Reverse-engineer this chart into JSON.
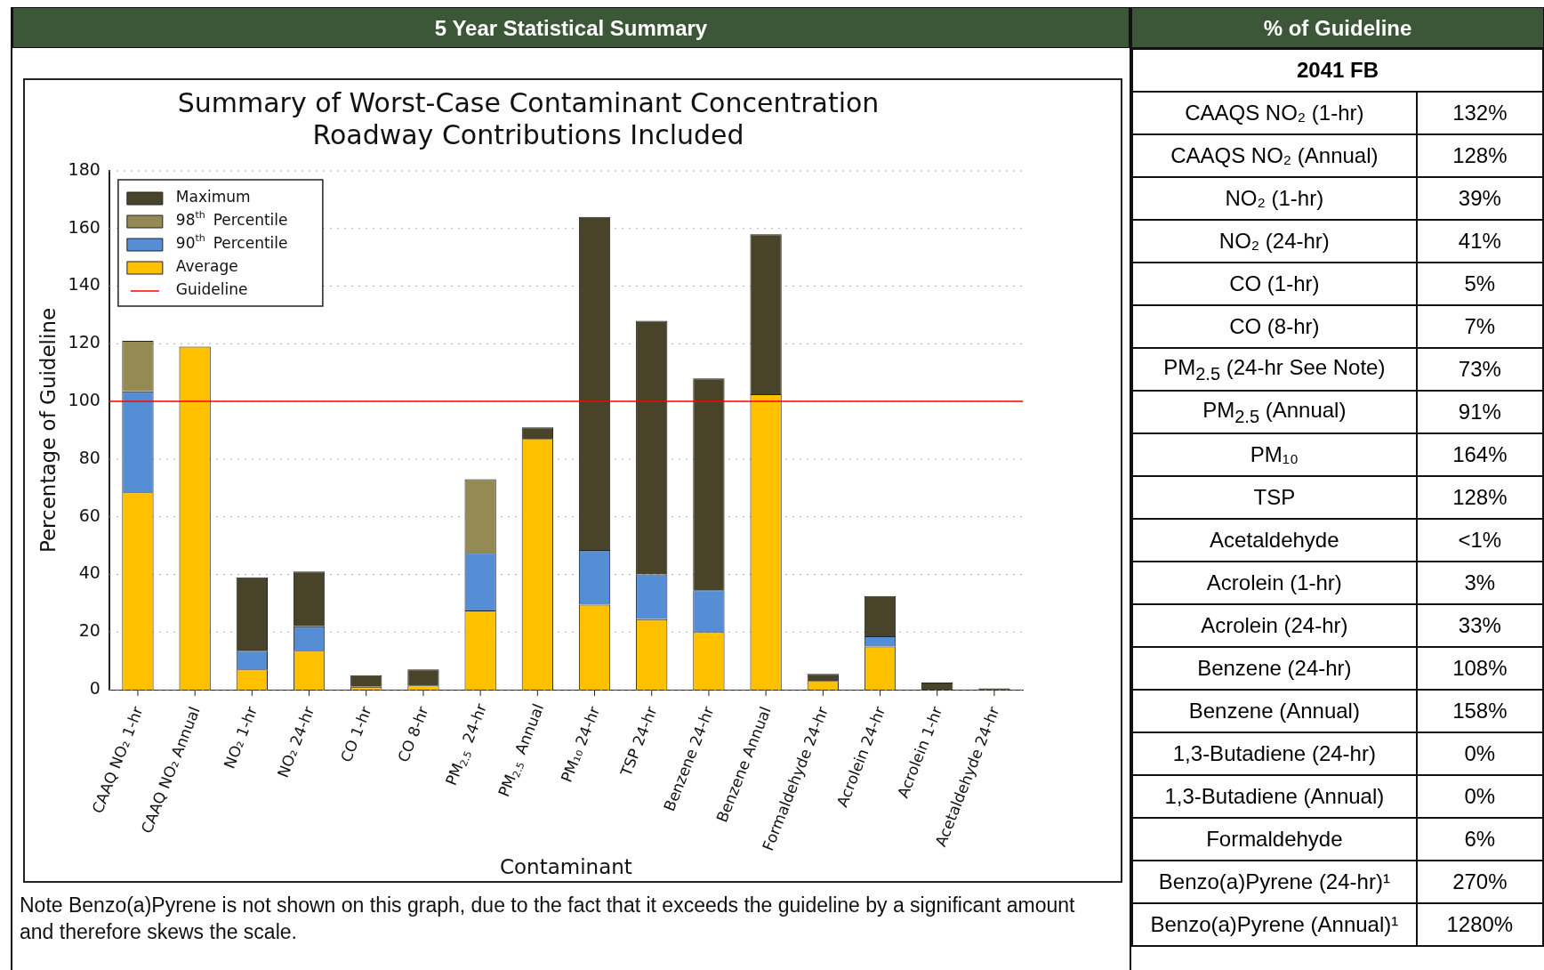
{
  "chart_data": [
    {
      "type": "bar",
      "title": "Summary of Worst-Case Contaminant Concentration\nRoadway Contributions Included",
      "xlabel": "Contaminant",
      "ylabel": "Percentage of Guideline",
      "annotations": [
        "5 Year Statistical Summary",
        "Note Benzo(a)Pyrene is not shown on this graph, due to the fact that it exceeds the guideline by a significant amount and therefore skews the scale."
      ],
      "categories": [
        "CAAQ NO₂ 1-hr",
        "CAAQ NO₂ Annual",
        "NO₂ 1-hr",
        "NO₂ 24-hr",
        "CO 1-hr",
        "CO 8-hr",
        "PM$_{2.5}$ 24-hr",
        "PM$_{2.5}$ Annual",
        "PM₁₀ 24-hr",
        "TSP 24-hr",
        "Benzene 24-hr",
        "Benzene Annual",
        "Formaldehyde 24-hr",
        "Acrolein 24-hr",
        "Acrolein 1-hr",
        "Acetaldehyde 24-hr"
      ],
      "stacked": true,
      "series": [
        {
          "name": "Average",
          "color": "#ffc000",
          "values": [
            68.5,
            119,
            7,
            13.5,
            1,
            1.5,
            27.5,
            87,
            29.5,
            24.5,
            20,
            102.5,
            3,
            15,
            null,
            null
          ]
        },
        {
          "name": "90$^{th}$ Percentile",
          "color": "#558ed5",
          "values": [
            35,
            null,
            6.5,
            8.5,
            null,
            null,
            20,
            null,
            19,
            15.5,
            14.5,
            null,
            null,
            3.5,
            null,
            null
          ]
        },
        {
          "name": "98$^{th}$ Percentile",
          "color": "#948a54",
          "values": [
            17.5,
            null,
            null,
            null,
            null,
            null,
            25.5,
            null,
            null,
            null,
            null,
            null,
            null,
            null,
            null,
            null
          ]
        },
        {
          "name": "Maximum",
          "color": "#494429",
          "values": [
            null,
            null,
            25.5,
            19,
            4,
            5.5,
            null,
            4,
            115.5,
            88,
            73.5,
            55.5,
            2.5,
            14,
            2.5,
            0.5
          ]
        }
      ],
      "ref_lines": [
        {
          "axis": "y",
          "value": 100,
          "label": "Guideline",
          "color": "#ff0000"
        }
      ],
      "ylim": [
        0,
        180
      ],
      "yticks": [
        0,
        20,
        40,
        60,
        80,
        100,
        120,
        140,
        160,
        180
      ],
      "grid": "y",
      "legend": "top left"
    },
    {
      "type": "other",
      "title": "% of Guideline",
      "subtitle": "2041 FB",
      "annotations": [
        "CAAQS NO₂ (1-hr)",
        "132%",
        "CAAQS NO₂ (Annual)",
        "128%",
        "NO₂ (1-hr)",
        "39%",
        "NO₂ (24-hr)",
        "41%",
        "CO (1-hr)",
        "5%",
        "CO (8-hr)",
        "7%",
        "PM$_{2.5}$ (24-hr See Note)",
        "73%",
        "PM$_{2.5}$ (Annual)",
        "91%",
        "PM₁₀",
        "164%",
        "TSP",
        "128%",
        "Acetaldehyde",
        "<1%",
        "Acrolein (1-hr)",
        "3%",
        "Acrolein (24-hr)",
        "33%",
        "Benzene (24-hr)",
        "108%",
        "Benzene (Annual)",
        "158%",
        "1,3-Butadiene (24-hr)",
        "0%",
        "1,3-Butadiene (Annual)",
        "0%",
        "Formaldehyde",
        "6%",
        "Benzo(a)Pyrene (24-hr)¹",
        "270%",
        "Benzo(a)Pyrene (Annual)¹",
        "1280%"
      ]
    }
  ]
}
